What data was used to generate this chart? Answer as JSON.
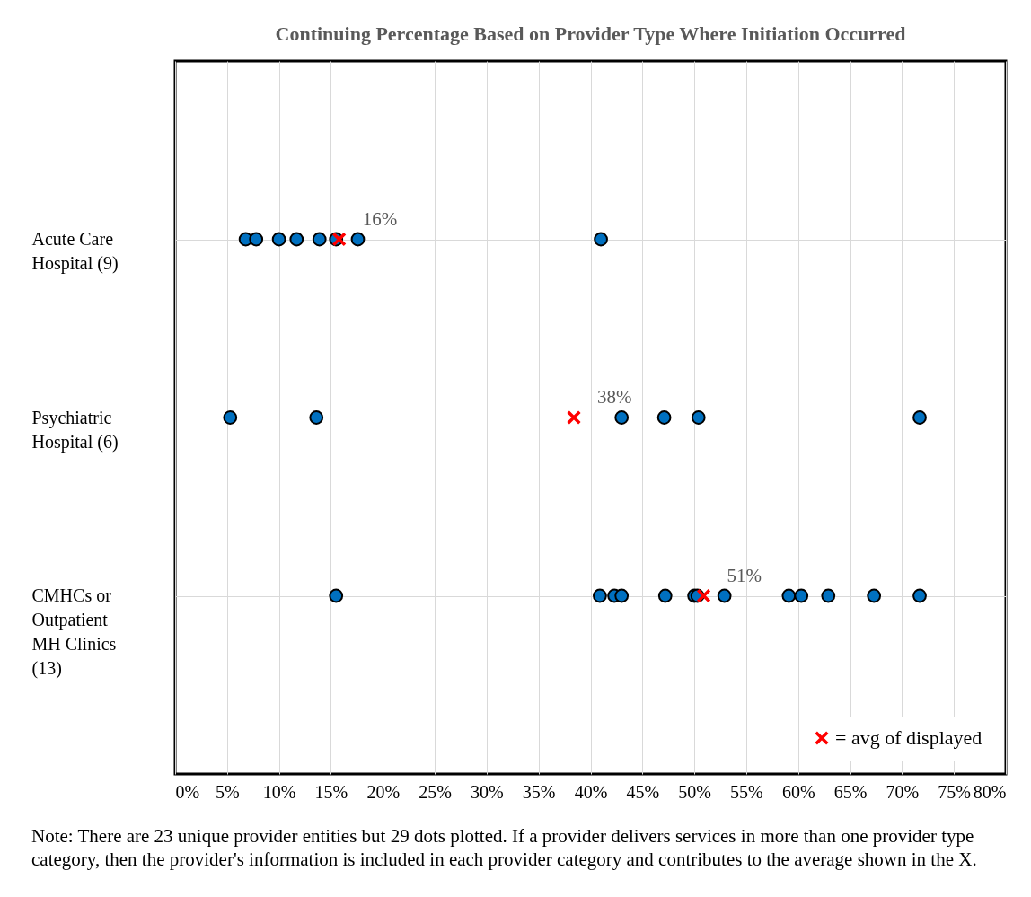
{
  "chart_data": {
    "type": "scatter",
    "orientation": "horizontal",
    "title": "Continuing  Percentage Based on Provider  Type  Where Initiation  Occurred",
    "categories": [
      "Acute Care Hospital (9)",
      "Psychiatric Hospital (6)",
      "CMHCs or Outpatient MH Clinics (13)"
    ],
    "xlim": [
      0,
      80
    ],
    "xticks": [
      {
        "value": 0,
        "label": "0%"
      },
      {
        "value": 5,
        "label": "5%"
      },
      {
        "value": 10,
        "label": "10%"
      },
      {
        "value": 15,
        "label": "15%"
      },
      {
        "value": 20,
        "label": "20%"
      },
      {
        "value": 25,
        "label": "25%"
      },
      {
        "value": 30,
        "label": "30%"
      },
      {
        "value": 35,
        "label": "35%"
      },
      {
        "value": 40,
        "label": "40%"
      },
      {
        "value": 45,
        "label": "45%"
      },
      {
        "value": 50,
        "label": "50%"
      },
      {
        "value": 55,
        "label": "55%"
      },
      {
        "value": 60,
        "label": "60%"
      },
      {
        "value": 65,
        "label": "65%"
      },
      {
        "value": 70,
        "label": "70%"
      },
      {
        "value": 75,
        "label": "75%"
      },
      {
        "value": 80,
        "label": "80%"
      }
    ],
    "grid": true,
    "legend": "bottom right",
    "series": [
      {
        "color": "#0070c0",
        "marker": "circle",
        "x": [
          "Acute Care Hospital (9)",
          "Acute Care Hospital (9)",
          "Acute Care Hospital (9)",
          "Acute Care Hospital (9)",
          "Acute Care Hospital (9)",
          "Acute Care Hospital (9)",
          "Acute Care Hospital (9)",
          "Acute Care Hospital (9)",
          "Psychiatric Hospital (6)",
          "Psychiatric Hospital (6)",
          "Psychiatric Hospital (6)",
          "Psychiatric Hospital (6)",
          "Psychiatric Hospital (6)",
          "Psychiatric Hospital (6)",
          "CMHCs or Outpatient MH Clinics (13)",
          "CMHCs or Outpatient MH Clinics (13)",
          "CMHCs or Outpatient MH Clinics (13)",
          "CMHCs or Outpatient MH Clinics (13)",
          "CMHCs or Outpatient MH Clinics (13)",
          "CMHCs or Outpatient MH Clinics (13)",
          "CMHCs or Outpatient MH Clinics (13)",
          "CMHCs or Outpatient MH Clinics (13)",
          "CMHCs or Outpatient MH Clinics (13)",
          "CMHCs or Outpatient MH Clinics (13)",
          "CMHCs or Outpatient MH Clinics (13)",
          "CMHCs or Outpatient MH Clinics (13)",
          "CMHCs or Outpatient MH Clinics (13)"
        ],
        "values": [
          6.8,
          7.8,
          10,
          11.7,
          13.9,
          15.5,
          17.6,
          41,
          5.3,
          13.6,
          43,
          47.1,
          50.4,
          71.7,
          15.5,
          40.9,
          42.3,
          43,
          47.2,
          50,
          50.3,
          52.9,
          59.1,
          60.3,
          62.9,
          67.3,
          71.7
        ]
      },
      {
        "name": "= avg of displayed",
        "color": "#ff0000",
        "marker": "cross",
        "x": [
          "Acute Care Hospital (9)",
          "Psychiatric Hospital (6)",
          "CMHCs or Outpatient MH Clinics (13)"
        ],
        "values": [
          15.8,
          38.4,
          50.9
        ],
        "value_labels": [
          "16%",
          "38%",
          "51%"
        ]
      }
    ],
    "annotations": [
      "Note:  There are 23 unique provider entities but 29 dots plotted.  If a provider delivers services in more than one provider type category, then the provider's information  is included in each provider category and contributes to the average shown in the X."
    ]
  }
}
